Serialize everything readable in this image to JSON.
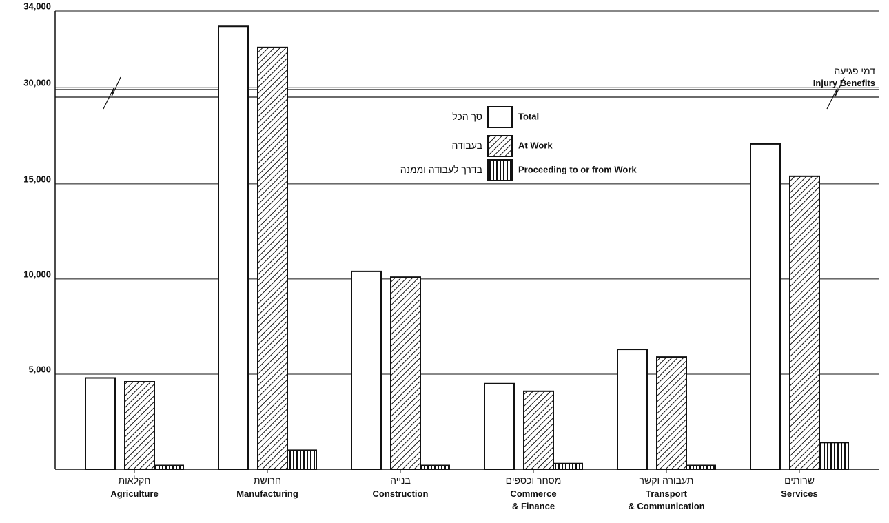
{
  "chart_data": {
    "type": "bar",
    "title": "Injury Benefits",
    "title_he": "דמי פגיעה",
    "categories": [
      "Agriculture",
      "Manufacturing",
      "Construction",
      "Commerce\n& Finance",
      "Transport\n& Communication",
      "Services"
    ],
    "categories_he": [
      "חקלאות",
      "חרושת",
      "בנייה",
      "מסחר וכספים",
      "תעבורה וקשר",
      "שרותים"
    ],
    "series": [
      {
        "name": "Total",
        "name_he": "סך הכל",
        "color": "#ffffff",
        "pattern": "none",
        "values": [
          4800,
          33200,
          10400,
          4500,
          6300,
          17100
        ]
      },
      {
        "name": "At Work",
        "name_he": "בעבודה",
        "color": "#ffffff",
        "pattern": "diagonal",
        "values": [
          4600,
          32100,
          10100,
          4100,
          5900,
          15400
        ]
      },
      {
        "name": "Proceeding to or from Work",
        "name_he": "בדרך לעבודה וממנה",
        "color": "#ffffff",
        "pattern": "vertical",
        "values": [
          200,
          1000,
          200,
          300,
          200,
          1400
        ]
      }
    ],
    "ylim": [
      0,
      34000
    ],
    "axis_break": [
      19560,
      29900
    ],
    "yticks": [
      {
        "value": 5000,
        "label": "5,000"
      },
      {
        "value": 10000,
        "label": "10,000"
      },
      {
        "value": 15000,
        "label": "15,000"
      },
      {
        "value": 30000,
        "label": "30,000"
      },
      {
        "value": 34000,
        "label": "34,000"
      }
    ],
    "grid": true
  }
}
